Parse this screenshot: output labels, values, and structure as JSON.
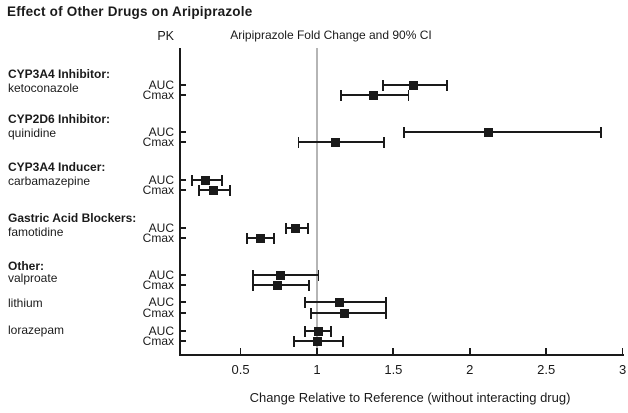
{
  "title": "Effect of Other Drugs on Aripiprazole",
  "header": {
    "pk_label": "PK",
    "axis_header": "Aripiprazole Fold Change and 90% CI"
  },
  "colors": {
    "marker": "#1a1a1a",
    "axis": "#1a1a1a",
    "reference_line": "#b5b5b5"
  },
  "chart_data": {
    "type": "forest",
    "title": "Effect of Other Drugs on Aripiprazole",
    "xlabel": "Change Relative to Reference (without interacting drug)",
    "x_ticks": [
      0.5,
      1,
      1.5,
      2,
      2.5,
      3
    ],
    "x_tick_labels": [
      "0.5",
      "1",
      "1.5",
      "2",
      "2.5",
      "3"
    ],
    "xlim": [
      0.1,
      3.05
    ],
    "reference_x": 1,
    "metric_column_header": "PK",
    "ci_level": "90% CI",
    "grid": false,
    "legend": "none",
    "groups": [
      {
        "category": "CYP3A4 Inhibitor:",
        "drug": "ketoconazole",
        "rows": [
          {
            "metric": "AUC",
            "value": 1.63,
            "ci_low": 1.43,
            "ci_high": 1.85
          },
          {
            "metric": "Cmax",
            "value": 1.37,
            "ci_low": 1.16,
            "ci_high": 1.6
          }
        ]
      },
      {
        "category": "CYP2D6 Inhibitor:",
        "drug": "quinidine",
        "rows": [
          {
            "metric": "AUC",
            "value": 2.12,
            "ci_low": 1.57,
            "ci_high": 2.86
          },
          {
            "metric": "Cmax",
            "value": 1.12,
            "ci_low": 0.88,
            "ci_high": 1.44
          }
        ]
      },
      {
        "category": "CYP3A4 Inducer:",
        "drug": "carbamazepine",
        "rows": [
          {
            "metric": "AUC",
            "value": 0.27,
            "ci_low": 0.18,
            "ci_high": 0.38
          },
          {
            "metric": "Cmax",
            "value": 0.32,
            "ci_low": 0.23,
            "ci_high": 0.43
          }
        ]
      },
      {
        "category": "Gastric Acid Blockers:",
        "drug": "famotidine",
        "rows": [
          {
            "metric": "AUC",
            "value": 0.86,
            "ci_low": 0.8,
            "ci_high": 0.94
          },
          {
            "metric": "Cmax",
            "value": 0.63,
            "ci_low": 0.54,
            "ci_high": 0.72
          }
        ]
      },
      {
        "category": "Other:",
        "drug": "valproate",
        "rows": [
          {
            "metric": "AUC",
            "value": 0.76,
            "ci_low": 0.58,
            "ci_high": 1.01
          },
          {
            "metric": "Cmax",
            "value": 0.74,
            "ci_low": 0.58,
            "ci_high": 0.95
          }
        ]
      },
      {
        "category": null,
        "drug": "lithium",
        "rows": [
          {
            "metric": "AUC",
            "value": 1.15,
            "ci_low": 0.92,
            "ci_high": 1.45
          },
          {
            "metric": "Cmax",
            "value": 1.18,
            "ci_low": 0.96,
            "ci_high": 1.45
          }
        ]
      },
      {
        "category": null,
        "drug": "lorazepam",
        "rows": [
          {
            "metric": "AUC",
            "value": 1.01,
            "ci_low": 0.92,
            "ci_high": 1.09
          },
          {
            "metric": "Cmax",
            "value": 1.0,
            "ci_low": 0.85,
            "ci_high": 1.17
          }
        ]
      }
    ]
  }
}
